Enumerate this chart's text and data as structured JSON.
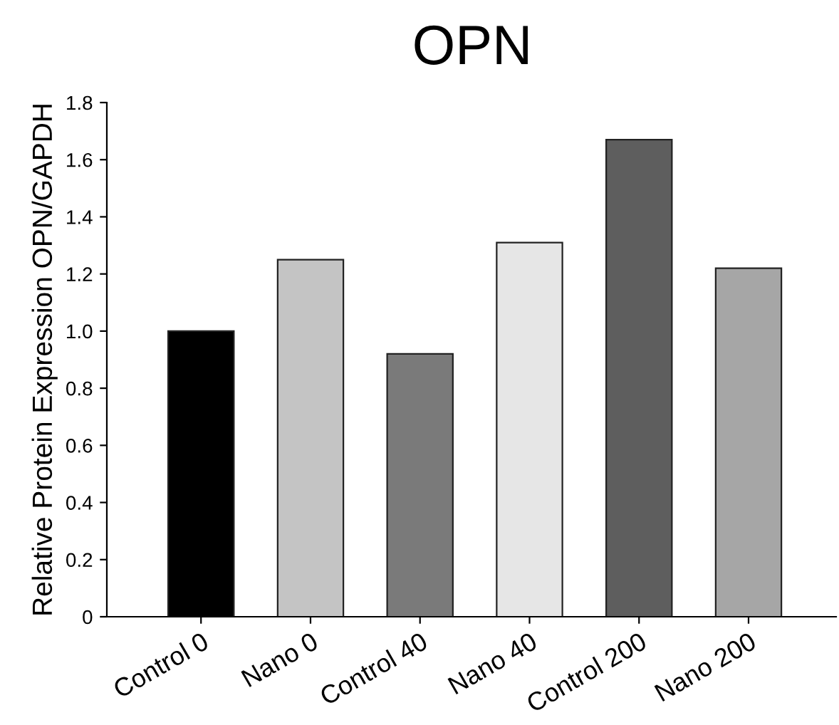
{
  "chart_data": {
    "type": "bar",
    "title": "OPN",
    "ylabel": "Relative Protein Expression OPN/GAPDH",
    "categories": [
      "Control 0",
      "Nano 0",
      "Control 40",
      "Nano 40",
      "Control 200",
      "Nano 200"
    ],
    "values": [
      1.0,
      1.25,
      0.92,
      1.31,
      1.67,
      1.22
    ],
    "colors": [
      "#000000",
      "#c4c4c4",
      "#7a7a7a",
      "#e6e6e6",
      "#5e5e5e",
      "#a6a6a6"
    ],
    "ylim": [
      0,
      1.8
    ],
    "yticks": [
      0,
      0.2,
      0.4,
      0.6,
      0.8,
      {
        "value": 1.0,
        "label": "1.0"
      },
      1.2,
      1.4,
      1.6,
      1.8
    ],
    "grid": false
  }
}
